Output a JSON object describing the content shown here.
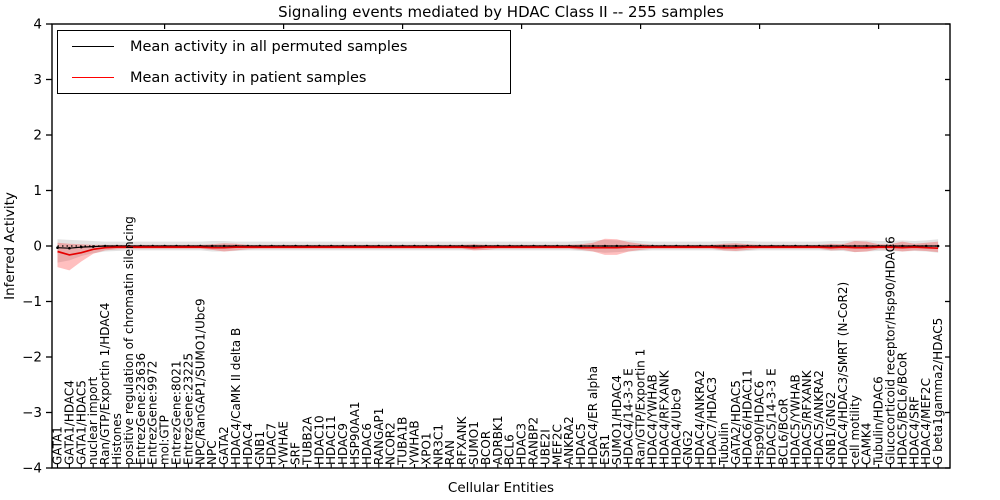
{
  "title": "Signaling events mediated by HDAC Class II -- 255 samples",
  "legend": {
    "items": [
      {
        "label": "Mean activity in all permuted samples",
        "color": "#000000"
      },
      {
        "label": "Mean activity in patient samples",
        "color": "#ff0000"
      }
    ]
  },
  "chart_data": {
    "type": "line",
    "title": "Signaling events mediated by HDAC Class II -- 255 samples",
    "xlabel": "Cellular Entities",
    "ylabel": "Inferred Activity",
    "ylim": [
      -4,
      4
    ],
    "yticks": [
      4,
      3,
      2,
      1,
      0,
      -1,
      -2,
      -3,
      -4
    ],
    "grid": false,
    "legend_position": "upper left",
    "categories": [
      "GATA1",
      "GATA1/HDAC4",
      "GATA1/HDAC5",
      "nuclear import",
      "Ran/GTP/Exportin 1/HDAC4",
      "Histones",
      "positive regulation of chromatin silencing",
      "EntrezGene:23636",
      "EntrezGene:9972",
      "mol:GTP",
      "EntrezGene:8021",
      "EntrezGene:23225",
      "NPC/RanGAP1/SUMO1/Ubc9",
      "NPC",
      "GATA2",
      "HDAC4/CaMK II delta B",
      "HDAC4",
      "GNB1",
      "HDAC7",
      "YWHAE",
      "SRF",
      "TUBB2A",
      "HDAC10",
      "HDAC11",
      "HDAC9",
      "HSP90AA1",
      "HDAC6",
      "RANGAP1",
      "NCOR2",
      "TUBA1B",
      "YWHAB",
      "XPO1",
      "NR3C1",
      "RAN",
      "RFXANK",
      "SUMO1",
      "BCOR",
      "ADRBK1",
      "BCL6",
      "HDAC3",
      "RANBP2",
      "UBE2I",
      "MEF2C",
      "ANKRA2",
      "HDAC5",
      "HDAC4/ER alpha",
      "ESR1",
      "SUMO1/HDAC4",
      "HDAC4/14-3-3 E",
      "Ran/GTP/Exportin 1",
      "HDAC4/YWHAB",
      "HDAC4/RFXANK",
      "HDAC4/Ubc9",
      "GNG2",
      "HDAC4/ANKRA2",
      "HDAC7/HDAC3",
      "Tubulin",
      "GATA2/HDAC5",
      "HDAC6/HDAC11",
      "Hsp90/HDAC6",
      "HDAC5/14-3-3 E",
      "BCL6/BCoR",
      "HDAC5/YWHAB",
      "HDAC5/RFXANK",
      "HDAC5/ANKRA2",
      "GNB1/GNG2",
      "HDAC4/HDAC3/SMRT (N-CoR2)",
      "cell motility",
      "CAMK4",
      "Tubulin/HDAC6",
      "Glucocorticoid receptor/Hsp90/HDAC6",
      "HDAC5/BCL6/BCoR",
      "HDAC4/SRF",
      "HDAC4/MEF2C",
      "G beta1gamma2/HDAC5"
    ],
    "series": [
      {
        "name": "Mean activity in all permuted samples",
        "color": "#000000",
        "marker": true,
        "values": [
          -0.03,
          -0.04,
          -0.02,
          -0.01,
          0,
          0,
          0,
          0,
          0,
          0,
          0,
          0,
          0,
          0,
          0,
          0,
          0,
          0,
          0,
          0,
          0,
          0,
          0,
          0,
          0,
          0,
          0,
          0,
          0,
          0,
          0,
          0,
          0,
          0,
          0,
          0,
          0,
          0,
          0,
          0,
          0,
          0,
          0,
          0,
          0,
          0,
          0,
          0,
          0,
          0,
          0,
          0,
          0,
          0,
          0,
          0,
          0,
          0,
          0,
          0,
          0,
          0,
          0,
          0,
          0,
          0,
          0,
          0,
          0,
          0,
          0,
          0,
          0,
          0,
          0
        ]
      },
      {
        "name": "Mean activity in patient samples",
        "color": "#e60000",
        "marker": false,
        "values": [
          -0.1,
          -0.16,
          -0.12,
          -0.06,
          -0.03,
          -0.02,
          -0.02,
          -0.02,
          -0.02,
          -0.02,
          -0.02,
          -0.02,
          -0.02,
          -0.03,
          -0.03,
          -0.02,
          -0.02,
          -0.02,
          -0.02,
          -0.02,
          -0.02,
          -0.02,
          -0.02,
          -0.02,
          -0.02,
          -0.02,
          -0.02,
          -0.02,
          -0.02,
          -0.02,
          -0.02,
          -0.02,
          -0.02,
          -0.02,
          -0.02,
          -0.03,
          -0.02,
          -0.02,
          -0.02,
          -0.02,
          -0.02,
          -0.02,
          -0.02,
          -0.02,
          -0.03,
          -0.03,
          -0.03,
          -0.03,
          -0.02,
          -0.02,
          -0.02,
          -0.02,
          -0.02,
          -0.02,
          -0.02,
          -0.02,
          -0.03,
          -0.03,
          -0.02,
          -0.02,
          -0.02,
          -0.02,
          -0.02,
          -0.02,
          -0.02,
          -0.03,
          -0.02,
          -0.03,
          -0.03,
          -0.02,
          -0.02,
          -0.03,
          -0.02,
          -0.03,
          -0.04
        ]
      }
    ],
    "bands": [
      {
        "name": "permuted-samples-range",
        "color": "rgba(0,0,0,0.11)",
        "lower": [
          -0.3,
          -0.26,
          -0.18,
          -0.13,
          -0.1,
          -0.09,
          -0.08,
          -0.08,
          -0.08,
          -0.08,
          -0.08,
          -0.08,
          -0.08,
          -0.1,
          -0.1,
          -0.09,
          -0.08,
          -0.08,
          -0.08,
          -0.08,
          -0.08,
          -0.08,
          -0.08,
          -0.08,
          -0.08,
          -0.08,
          -0.08,
          -0.08,
          -0.08,
          -0.08,
          -0.08,
          -0.08,
          -0.08,
          -0.08,
          -0.08,
          -0.08,
          -0.08,
          -0.08,
          -0.08,
          -0.08,
          -0.08,
          -0.08,
          -0.08,
          -0.08,
          -0.09,
          -0.1,
          -0.12,
          -0.11,
          -0.1,
          -0.09,
          -0.08,
          -0.08,
          -0.08,
          -0.08,
          -0.08,
          -0.08,
          -0.09,
          -0.1,
          -0.09,
          -0.08,
          -0.08,
          -0.08,
          -0.08,
          -0.08,
          -0.08,
          -0.09,
          -0.09,
          -0.11,
          -0.1,
          -0.09,
          -0.09,
          -0.1,
          -0.09,
          -0.1,
          -0.12
        ],
        "upper": [
          0.12,
          0.11,
          0.1,
          0.09,
          0.08,
          0.08,
          0.08,
          0.08,
          0.08,
          0.08,
          0.08,
          0.08,
          0.08,
          0.09,
          0.09,
          0.08,
          0.08,
          0.08,
          0.08,
          0.08,
          0.08,
          0.08,
          0.08,
          0.08,
          0.08,
          0.08,
          0.08,
          0.08,
          0.08,
          0.08,
          0.08,
          0.08,
          0.08,
          0.08,
          0.08,
          0.08,
          0.08,
          0.08,
          0.08,
          0.08,
          0.08,
          0.08,
          0.08,
          0.08,
          0.09,
          0.1,
          0.11,
          0.1,
          0.1,
          0.09,
          0.08,
          0.08,
          0.08,
          0.08,
          0.08,
          0.08,
          0.09,
          0.09,
          0.09,
          0.08,
          0.08,
          0.08,
          0.08,
          0.08,
          0.08,
          0.09,
          0.09,
          0.1,
          0.1,
          0.09,
          0.09,
          0.1,
          0.09,
          0.1,
          0.12
        ]
      },
      {
        "name": "patient-samples-range",
        "color": "rgba(255,0,0,0.25)",
        "lower": [
          -0.38,
          -0.44,
          -0.28,
          -0.14,
          -0.08,
          -0.06,
          -0.05,
          -0.05,
          -0.05,
          -0.05,
          -0.05,
          -0.05,
          -0.05,
          -0.07,
          -0.1,
          -0.08,
          -0.06,
          -0.05,
          -0.05,
          -0.05,
          -0.05,
          -0.05,
          -0.05,
          -0.05,
          -0.05,
          -0.05,
          -0.05,
          -0.05,
          -0.05,
          -0.05,
          -0.05,
          -0.05,
          -0.05,
          -0.05,
          -0.05,
          -0.08,
          -0.07,
          -0.05,
          -0.05,
          -0.05,
          -0.05,
          -0.05,
          -0.05,
          -0.05,
          -0.07,
          -0.1,
          -0.16,
          -0.16,
          -0.1,
          -0.07,
          -0.05,
          -0.05,
          -0.05,
          -0.05,
          -0.05,
          -0.05,
          -0.08,
          -0.09,
          -0.07,
          -0.05,
          -0.05,
          -0.05,
          -0.05,
          -0.05,
          -0.05,
          -0.08,
          -0.07,
          -0.11,
          -0.1,
          -0.06,
          -0.07,
          -0.1,
          -0.08,
          -0.09,
          -0.11
        ],
        "upper": [
          0.06,
          0.04,
          0.03,
          0.02,
          0.02,
          0.02,
          0.02,
          0.02,
          0.02,
          0.02,
          0.02,
          0.02,
          0.02,
          0.03,
          0.05,
          0.04,
          0.02,
          0.02,
          0.02,
          0.02,
          0.02,
          0.02,
          0.02,
          0.02,
          0.02,
          0.02,
          0.02,
          0.02,
          0.02,
          0.02,
          0.02,
          0.02,
          0.02,
          0.02,
          0.02,
          0.03,
          0.02,
          0.02,
          0.02,
          0.02,
          0.02,
          0.02,
          0.02,
          0.02,
          0.03,
          0.06,
          0.13,
          0.12,
          0.07,
          0.04,
          0.02,
          0.02,
          0.02,
          0.02,
          0.02,
          0.02,
          0.04,
          0.05,
          0.03,
          0.02,
          0.02,
          0.02,
          0.02,
          0.02,
          0.02,
          0.04,
          0.03,
          0.09,
          0.08,
          0.03,
          0.03,
          0.08,
          0.04,
          0.06,
          0.08
        ]
      }
    ],
    "layout": {
      "zero_line": true,
      "top_tick_indices": [
        9,
        19,
        29,
        39,
        49,
        59,
        69
      ]
    }
  }
}
